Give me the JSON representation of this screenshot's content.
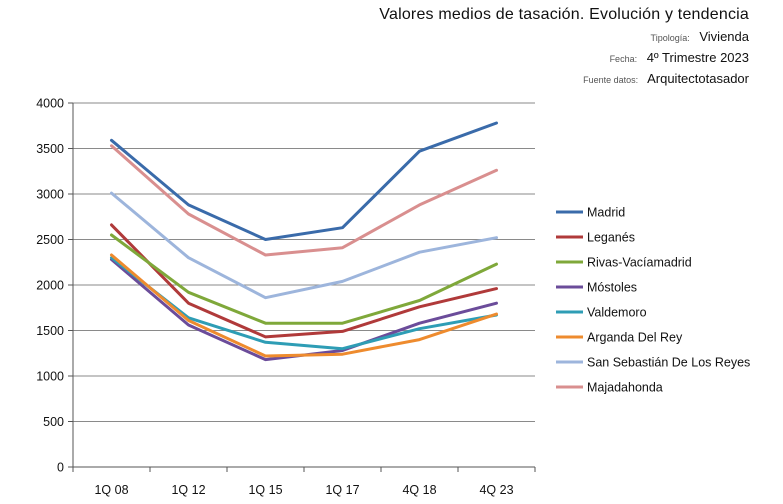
{
  "header": {
    "title": "Valores medios de tasación. Evolución y tendencia",
    "tipologia_label": "Tipología:",
    "tipologia_value": "Vivienda",
    "fecha_label": "Fecha:",
    "fecha_value": "4º Trimestre 2023",
    "fuente_label": "Fuente datos:",
    "fuente_value": "Arquitectotasador"
  },
  "chart_data": {
    "type": "line",
    "title": "Valores medios de tasación. Evolución y tendencia",
    "xlabel": "",
    "ylabel": "",
    "categories": [
      "1Q 08",
      "1Q 12",
      "1Q 15",
      "1Q 17",
      "4Q 18",
      "4Q 23"
    ],
    "ylim": [
      0,
      4000
    ],
    "yticks": [
      0,
      500,
      1000,
      1500,
      2000,
      2500,
      3000,
      3500,
      4000
    ],
    "grid": true,
    "legend_position": "right",
    "series": [
      {
        "name": "Madrid",
        "color": "#3A6BAA",
        "values": [
          3590,
          2880,
          2500,
          2630,
          3470,
          3780
        ]
      },
      {
        "name": "Leganés",
        "color": "#B03A3A",
        "values": [
          2660,
          1800,
          1430,
          1490,
          1760,
          1960
        ]
      },
      {
        "name": "Rivas-Vacíamadrid",
        "color": "#7FA83A",
        "values": [
          2550,
          1920,
          1580,
          1580,
          1830,
          2230
        ]
      },
      {
        "name": "Móstoles",
        "color": "#6B4C9A",
        "values": [
          2280,
          1560,
          1180,
          1280,
          1580,
          1800
        ]
      },
      {
        "name": "Valdemoro",
        "color": "#2E9DB5",
        "values": [
          2300,
          1640,
          1370,
          1300,
          1520,
          1670
        ]
      },
      {
        "name": "Arganda Del Rey",
        "color": "#EE8B2E",
        "values": [
          2330,
          1610,
          1220,
          1240,
          1400,
          1680
        ]
      },
      {
        "name": "San Sebastián De Los Reyes",
        "color": "#9DB5DC",
        "values": [
          3010,
          2300,
          1860,
          2040,
          2360,
          2520
        ]
      },
      {
        "name": "Majadahonda",
        "color": "#D98F8F",
        "values": [
          3530,
          2780,
          2330,
          2410,
          2880,
          3260
        ]
      }
    ]
  }
}
